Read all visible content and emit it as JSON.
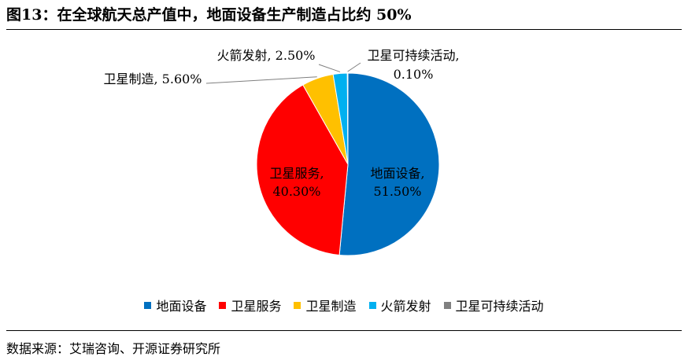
{
  "header": {
    "title": "图13：在全球航天总产值中，地面设备生产制造占比约 50%"
  },
  "source": "数据来源：艾瑞咨询、开源证券研究所",
  "chart_data": {
    "type": "pie",
    "legend_position": "bottom",
    "slices": [
      {
        "name": "地面设备",
        "value": 51.5,
        "label_text": "地面设备,",
        "value_text": "51.50%",
        "color": "#0070C0"
      },
      {
        "name": "卫星服务",
        "value": 40.3,
        "label_text": "卫星服务,",
        "value_text": "40.30%",
        "color": "#FF0000"
      },
      {
        "name": "卫星制造",
        "value": 5.6,
        "label_text": "卫星制造,",
        "value_text": "5.60%",
        "color": "#FFC000"
      },
      {
        "name": "火箭发射",
        "value": 2.5,
        "label_text": "火箭发射,",
        "value_text": "2.50%",
        "color": "#00B0F0"
      },
      {
        "name": "卫星可持续活动",
        "value": 0.1,
        "label_text": "卫星可持续活动,",
        "value_text": "0.10%",
        "color": "#808080"
      }
    ]
  }
}
